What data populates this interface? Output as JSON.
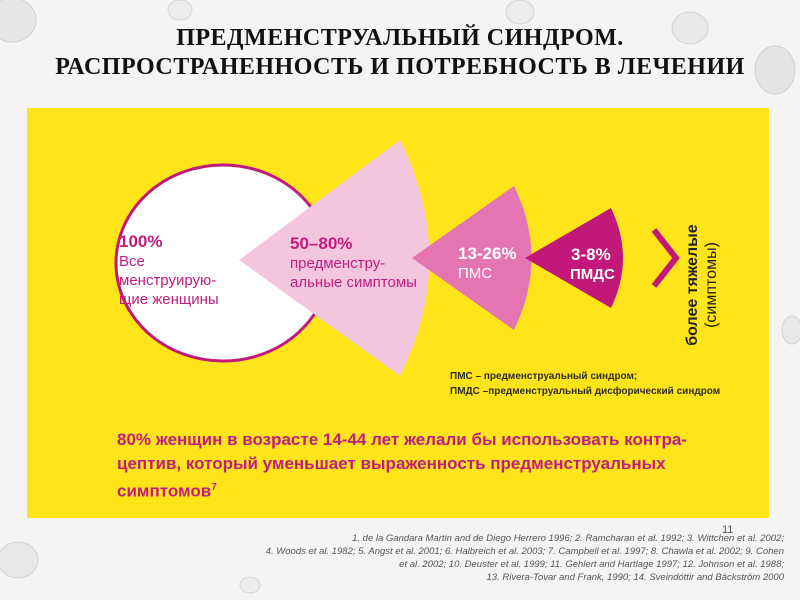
{
  "title": {
    "line1": "ПРЕДМЕНСТРУАЛЬНЫЙ СИНДРОМ.",
    "line2": "РАСПРОСТРАНЕННОСТЬ И  ПОТРЕБНОСТЬ В ЛЕЧЕНИИ"
  },
  "diagram": {
    "stages": [
      {
        "percent": "100%",
        "label_lines": [
          "Все",
          "менструирую-",
          "щие женщины"
        ],
        "color": "#ffffff"
      },
      {
        "percent": "50–80%",
        "label_lines": [
          "предменстру-",
          "альные симптомы"
        ],
        "color": "#f4c6dd"
      },
      {
        "percent": "13-26%",
        "label_lines": [
          "ПМС"
        ],
        "color": "#e574b2"
      },
      {
        "percent": "3-8%",
        "label_lines": [
          "ПМДС"
        ],
        "color": "#c2187a"
      }
    ],
    "severity": {
      "strong": "более тяжелые",
      "note": "(симптомы)"
    },
    "legend": [
      "ПМС – предменструальный синдром;",
      "ПМДС –предменструальный дисфорический синдром"
    ],
    "bottom_text": {
      "line1": "80% женщин в возрасте 14-44 лет желали бы использовать контра-",
      "line2": "цептив, который уменьшает выраженность предменструальных",
      "line3": "симптомов",
      "footnote_mark": "7"
    },
    "accent_color": "#c11d7e",
    "panel_color": "#ffe41a"
  },
  "footer": {
    "page_number": "11",
    "references": [
      "1. de la Gandara Martin and de Diego Herrero 1996; 2. Ramcharan et al. 1992; 3. Wittchen et al. 2002;",
      "4. Woods et al. 1982; 5. Angst et al. 2001; 6. Halbreich et al. 2003; 7. Campbell et al. 1997; 8. Chawla et al. 2002; 9. Cohen",
      "et al. 2002; 10. Deuster et al. 1999; 11. Gehlert and Hartlage 1997; 12. Johnson et al. 1988;",
      "13. Rivera-Tovar and Frank, 1990; 14. Sveindóttir and Bäckström 2000"
    ]
  }
}
